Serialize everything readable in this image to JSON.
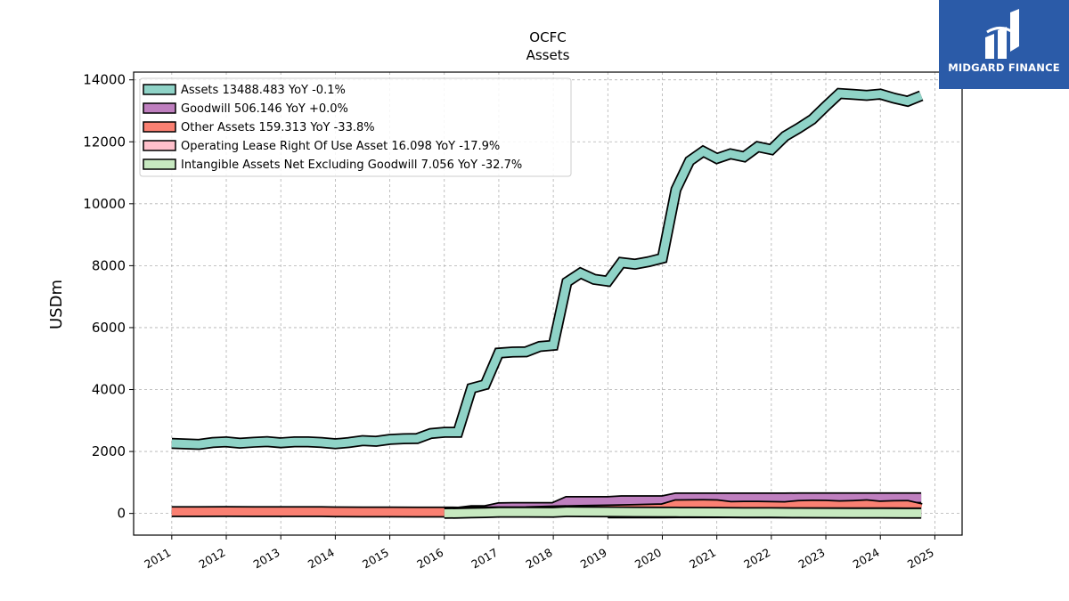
{
  "chart_data": {
    "type": "area",
    "title": "OCFC",
    "subtitle": "Assets",
    "xlabel": "",
    "ylabel": "USDm",
    "xlim": [
      2010.3,
      2025.5
    ],
    "ylim": [
      -700,
      14250
    ],
    "yticks": [
      0,
      2000,
      4000,
      6000,
      8000,
      10000,
      12000,
      14000
    ],
    "xticks": [
      2011,
      2012,
      2013,
      2014,
      2015,
      2016,
      2017,
      2018,
      2019,
      2020,
      2021,
      2022,
      2023,
      2024,
      2025
    ],
    "grid": true,
    "legend_position": "top-left",
    "series": [
      {
        "name": "Assets",
        "legend_label": "Assets  13488.483 YoY -0.1%",
        "color": "#8fd3c7",
        "x": [
          2011.0,
          2011.5,
          2011.75,
          2012.0,
          2012.25,
          2012.5,
          2012.75,
          2013.0,
          2013.25,
          2013.5,
          2013.75,
          2014.0,
          2014.25,
          2014.5,
          2014.75,
          2015.0,
          2015.25,
          2015.5,
          2015.75,
          2016.0,
          2016.25,
          2016.5,
          2016.75,
          2017.0,
          2017.25,
          2017.5,
          2017.75,
          2018.0,
          2018.25,
          2018.5,
          2018.75,
          2019.0,
          2019.25,
          2019.5,
          2019.75,
          2020.0,
          2020.25,
          2020.5,
          2020.75,
          2021.0,
          2021.25,
          2021.5,
          2021.75,
          2022.0,
          2022.25,
          2022.5,
          2022.75,
          2023.0,
          2023.25,
          2023.5,
          2023.75,
          2024.0,
          2024.25,
          2024.5,
          2024.75
        ],
        "values": [
          2260,
          2230,
          2290,
          2310,
          2270,
          2300,
          2320,
          2280,
          2310,
          2310,
          2290,
          2250,
          2290,
          2350,
          2330,
          2390,
          2410,
          2420,
          2580,
          2620,
          2620,
          4040,
          4160,
          5180,
          5210,
          5220,
          5390,
          5430,
          7470,
          7760,
          7560,
          7500,
          8100,
          8050,
          8130,
          8240,
          10460,
          11380,
          11690,
          11460,
          11610,
          11520,
          11840,
          11750,
          12180,
          12440,
          12720,
          13150,
          13560,
          13530,
          13500,
          13540,
          13410,
          13310,
          13488
        ]
      },
      {
        "name": "Goodwill",
        "legend_label": "Goodwill  506.146 YoY +0.0%",
        "color": "#bf7fbf",
        "x": [
          2016.0,
          2016.25,
          2016.5,
          2016.75,
          2017.0,
          2017.25,
          2017.5,
          2017.75,
          2018.0,
          2018.25,
          2018.5,
          2018.75,
          2019.0,
          2019.25,
          2019.5,
          2019.75,
          2020.0,
          2020.25,
          2020.5,
          2020.75,
          2021.0,
          2021.25,
          2021.5,
          2021.75,
          2022.0,
          2022.25,
          2022.5,
          2022.75,
          2023.0,
          2023.25,
          2023.5,
          2023.75,
          2024.0,
          2024.25,
          2024.5,
          2024.75
        ],
        "values": [
          38,
          38,
          92,
          92,
          186,
          190,
          190,
          190,
          190,
          385,
          385,
          385,
          385,
          410,
          410,
          410,
          410,
          500,
          500,
          500,
          500,
          500,
          500,
          500,
          500,
          500,
          506,
          506,
          506,
          506,
          506,
          506,
          506,
          506,
          506,
          506
        ]
      },
      {
        "name": "Other Assets",
        "legend_label": "Other Assets  159.313 YoY -33.8%",
        "color": "#fa8072",
        "x": [
          2011.0,
          2011.5,
          2012.0,
          2012.5,
          2013.0,
          2013.5,
          2013.75,
          2014.0,
          2014.5,
          2015.0,
          2015.5,
          2016.0,
          2016.25,
          2016.5,
          2016.75,
          2017.0,
          2017.5,
          2018.0,
          2018.5,
          2019.0,
          2019.5,
          2020.0,
          2020.25,
          2020.5,
          2020.75,
          2021.0,
          2021.25,
          2021.5,
          2021.75,
          2022.0,
          2022.25,
          2022.5,
          2022.75,
          2023.0,
          2023.25,
          2023.5,
          2023.75,
          2024.0,
          2024.25,
          2024.5,
          2024.75
        ],
        "values": [
          60,
          58,
          62,
          60,
          58,
          58,
          60,
          50,
          48,
          48,
          45,
          45,
          42,
          45,
          48,
          50,
          52,
          80,
          100,
          110,
          130,
          150,
          280,
          285,
          290,
          280,
          230,
          235,
          235,
          230,
          220,
          260,
          270,
          265,
          250,
          260,
          280,
          240,
          255,
          260,
          159
        ]
      },
      {
        "name": "Operating Lease Right Of Use Asset",
        "legend_label": "Operating Lease Right Of Use Asset  16.098 YoY -17.9%",
        "color": "#ffc0cb",
        "x": [
          2019.0,
          2019.25,
          2019.5,
          2019.75,
          2020.0,
          2020.25,
          2020.5,
          2020.75,
          2021.0,
          2021.25,
          2021.5,
          2021.75,
          2022.0,
          2022.25,
          2022.5,
          2022.75,
          2023.0,
          2023.25,
          2023.5,
          2023.75,
          2024.0,
          2024.25,
          2024.5,
          2024.75
        ],
        "values": [
          18,
          18,
          19,
          19,
          20,
          21,
          22,
          22,
          21,
          21,
          20,
          20,
          20,
          19,
          19,
          19,
          19,
          18,
          18,
          18,
          20,
          19,
          17,
          16
        ]
      },
      {
        "name": "Intangible Assets Net Excluding Goodwill",
        "legend_label": "Intangible Assets Net Excluding Goodwill  7.056 YoY -32.7%",
        "color": "#c7e9c0",
        "x": [
          2016.0,
          2016.25,
          2016.5,
          2016.75,
          2017.0,
          2017.5,
          2018.0,
          2018.25,
          2018.5,
          2019.0,
          2019.5,
          2020.0,
          2020.25,
          2020.5,
          2021.0,
          2021.5,
          2022.0,
          2022.5,
          2023.0,
          2023.5,
          2024.0,
          2024.5,
          2024.75
        ],
        "values": [
          5,
          6,
          20,
          24,
          40,
          38,
          35,
          60,
          55,
          50,
          46,
          42,
          38,
          36,
          32,
          28,
          25,
          20,
          16,
          13,
          10,
          8,
          7
        ]
      }
    ]
  },
  "logo": {
    "name": "MIDGARD FINANCE",
    "background": "#2b5ba8"
  }
}
